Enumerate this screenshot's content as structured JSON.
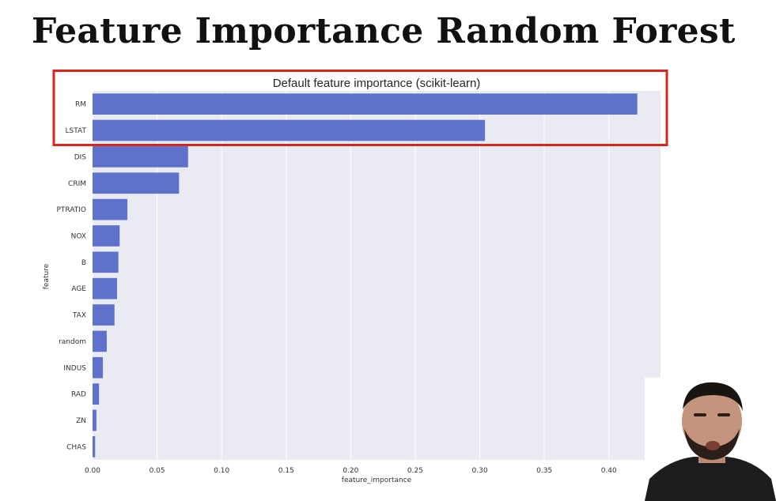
{
  "slide": {
    "title": "Feature Importance Random Forest"
  },
  "colors": {
    "bar": "#5e72cc",
    "plot_background": "#eaeaf2",
    "grid": "#ffffff",
    "highlight_box": "#d9261c"
  },
  "chart_data": {
    "type": "bar",
    "orientation": "horizontal",
    "title": "Default feature importance (scikit-learn)",
    "xlabel": "feature_importance",
    "ylabel": "feature",
    "xlim": [
      0,
      0.44
    ],
    "xticks": [
      "0.00",
      "0.05",
      "0.10",
      "0.15",
      "0.20",
      "0.25",
      "0.30",
      "0.35",
      "0.40"
    ],
    "grid": true,
    "categories": [
      "RM",
      "LSTAT",
      "DIS",
      "CRIM",
      "PTRATIO",
      "NOX",
      "B",
      "AGE",
      "TAX",
      "random",
      "INDUS",
      "RAD",
      "ZN",
      "CHAS"
    ],
    "values": [
      0.422,
      0.304,
      0.074,
      0.067,
      0.027,
      0.021,
      0.02,
      0.019,
      0.017,
      0.011,
      0.008,
      0.005,
      0.003,
      0.002
    ],
    "highlighted_categories": [
      "RM",
      "LSTAT"
    ]
  }
}
